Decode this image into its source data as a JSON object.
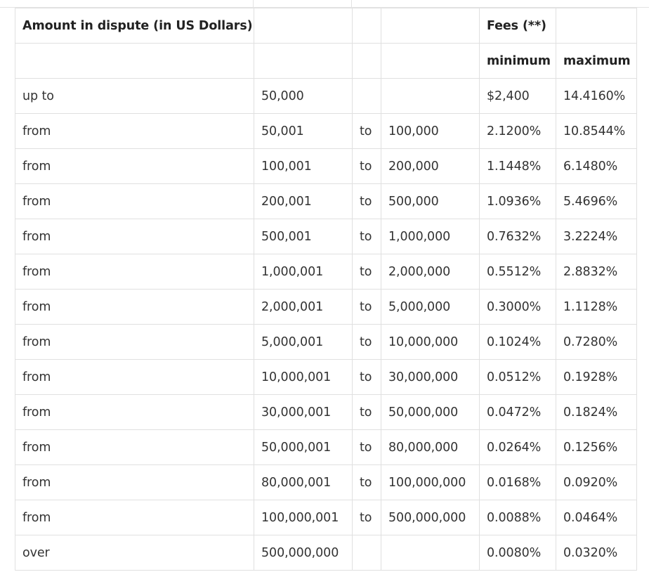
{
  "table": {
    "header": {
      "amount_label": "Amount in dispute (in US Dollars)",
      "fees_label": "Fees (**)",
      "minimum_label": "minimum",
      "maximum_label": "maximum"
    },
    "rows": [
      {
        "prefix": "up to",
        "from": "50,000",
        "to_word": "",
        "to": "",
        "min": "$2,400",
        "max": "14.4160%"
      },
      {
        "prefix": "from",
        "from": "50,001",
        "to_word": "to",
        "to": "100,000",
        "min": "2.1200%",
        "max": "10.8544%"
      },
      {
        "prefix": "from",
        "from": "100,001",
        "to_word": "to",
        "to": "200,000",
        "min": "1.1448%",
        "max": "6.1480%"
      },
      {
        "prefix": "from",
        "from": "200,001",
        "to_word": "to",
        "to": "500,000",
        "min": "1.0936%",
        "max": "5.4696%"
      },
      {
        "prefix": "from",
        "from": "500,001",
        "to_word": "to",
        "to": "1,000,000",
        "min": "0.7632%",
        "max": "3.2224%"
      },
      {
        "prefix": "from",
        "from": "1,000,001",
        "to_word": "to",
        "to": "2,000,000",
        "min": "0.5512%",
        "max": "2.8832%"
      },
      {
        "prefix": "from",
        "from": "2,000,001",
        "to_word": "to",
        "to": "5,000,000",
        "min": "0.3000%",
        "max": "1.1128%"
      },
      {
        "prefix": "from",
        "from": "5,000,001",
        "to_word": "to",
        "to": "10,000,000",
        "min": "0.1024%",
        "max": "0.7280%"
      },
      {
        "prefix": "from",
        "from": "10,000,001",
        "to_word": "to",
        "to": "30,000,000",
        "min": "0.0512%",
        "max": "0.1928%"
      },
      {
        "prefix": "from",
        "from": "30,000,001",
        "to_word": "to",
        "to": "50,000,000",
        "min": "0.0472%",
        "max": "0.1824%"
      },
      {
        "prefix": "from",
        "from": "50,000,001",
        "to_word": "to",
        "to": "80,000,000",
        "min": "0.0264%",
        "max": "0.1256%"
      },
      {
        "prefix": "from",
        "from": "80,000,001",
        "to_word": "to",
        "to": "100,000,000",
        "min": "0.0168%",
        "max": "0.0920%"
      },
      {
        "prefix": "from",
        "from": "100,000,001",
        "to_word": "to",
        "to": "500,000,000",
        "min": "0.0088%",
        "max": "0.0464%"
      },
      {
        "prefix": "over",
        "from": "500,000,000",
        "to_word": "",
        "to": "",
        "min": "0.0080%",
        "max": "0.0320%"
      }
    ]
  }
}
